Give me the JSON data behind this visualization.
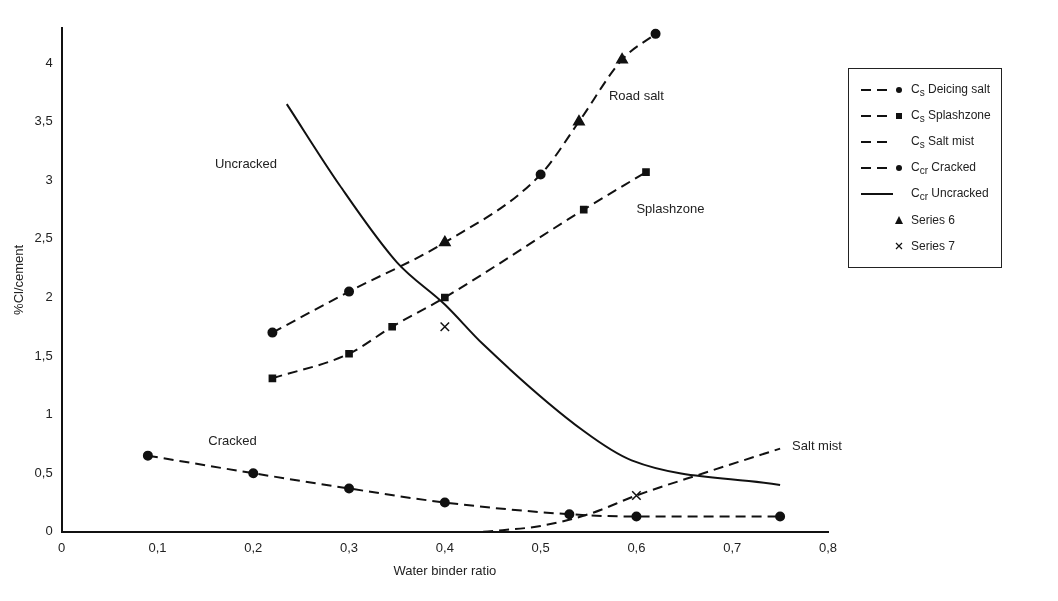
{
  "chart_data": {
    "type": "line",
    "xlabel": "Water binder ratio",
    "ylabel": "%Cl/cement",
    "xlim": [
      0,
      0.8
    ],
    "ylim": [
      0,
      4.3
    ],
    "xticks": [
      0,
      {
        "value": 0.1,
        "label": "0,1"
      },
      {
        "value": 0.2,
        "label": "0,2"
      },
      {
        "value": 0.3,
        "label": "0,3"
      },
      {
        "value": 0.4,
        "label": "0,4"
      },
      {
        "value": 0.5,
        "label": "0,5"
      },
      {
        "value": 0.6,
        "label": "0,6"
      },
      {
        "value": 0.7,
        "label": "0,7"
      },
      {
        "value": 0.8,
        "label": "0,8"
      }
    ],
    "yticks": [
      0,
      {
        "value": 0.5,
        "label": "0,5"
      },
      1,
      {
        "value": 1.5,
        "label": "1,5"
      },
      2,
      {
        "value": 2.5,
        "label": "2,5"
      },
      3,
      {
        "value": 3.5,
        "label": "3,5"
      },
      4
    ],
    "grid": false,
    "legend": "right",
    "series": [
      {
        "name": "C$_{s}$ Deicing salt",
        "color": "#111111",
        "line_style": "dashed",
        "marker": "circle",
        "x": [
          0.22,
          0.3,
          0.4,
          0.5,
          0.54,
          0.585,
          0.62
        ],
        "values": [
          1.7,
          2.05,
          2.47,
          3.05,
          3.5,
          4.03,
          4.25
        ]
      },
      {
        "name": "C$_{s}$ Splashzone",
        "color": "#111111",
        "line_style": "dashed",
        "marker": "square",
        "x": [
          0.22,
          0.3,
          0.345,
          0.4,
          0.545,
          0.61
        ],
        "values": [
          1.31,
          1.52,
          1.75,
          2.0,
          2.75,
          3.07
        ]
      },
      {
        "name": "C$_{s}$ Salt mist",
        "color": "#111111",
        "line_style": "dashed",
        "marker": "none",
        "x": [
          0.44,
          0.5,
          0.55,
          0.6,
          0.67,
          0.75
        ],
        "values": [
          0.0,
          0.05,
          0.15,
          0.31,
          0.5,
          0.71
        ]
      },
      {
        "name": "C$_{cr}$ Cracked",
        "color": "#111111",
        "line_style": "dashed",
        "marker": "circle",
        "x": [
          0.09,
          0.2,
          0.3,
          0.4,
          0.53,
          0.6,
          0.75
        ],
        "values": [
          0.65,
          0.5,
          0.37,
          0.25,
          0.15,
          0.13,
          0.13
        ]
      },
      {
        "name": "C$_{cr}$ Uncracked",
        "color": "#111111",
        "line_style": "solid",
        "marker": "none",
        "x": [
          0.235,
          0.29,
          0.35,
          0.4,
          0.44,
          0.545,
          0.595,
          0.75
        ],
        "values": [
          3.65,
          2.96,
          2.3,
          1.94,
          1.6,
          0.86,
          0.61,
          0.4
        ]
      },
      {
        "name": "Series 6",
        "type": "scatter",
        "color": "#111111",
        "marker": "triangle",
        "x": [
          0.4,
          0.54,
          0.585
        ],
        "values": [
          2.47,
          3.5,
          4.03
        ]
      },
      {
        "name": "Series 7",
        "type": "scatter",
        "color": "#111111",
        "marker": "cross",
        "x": [
          0.4,
          0.6
        ],
        "values": [
          1.75,
          0.31
        ]
      }
    ],
    "annotations": [
      {
        "text": "Road salt",
        "x": 0.54,
        "y": 3.5
      },
      "Uncracked",
      "Splashzone",
      {
        "text": "Cracked",
        "x": 0.2,
        "y": 0.5
      },
      {
        "text": "Salt mist",
        "x": 0.75,
        "y": 0.71
      }
    ]
  }
}
